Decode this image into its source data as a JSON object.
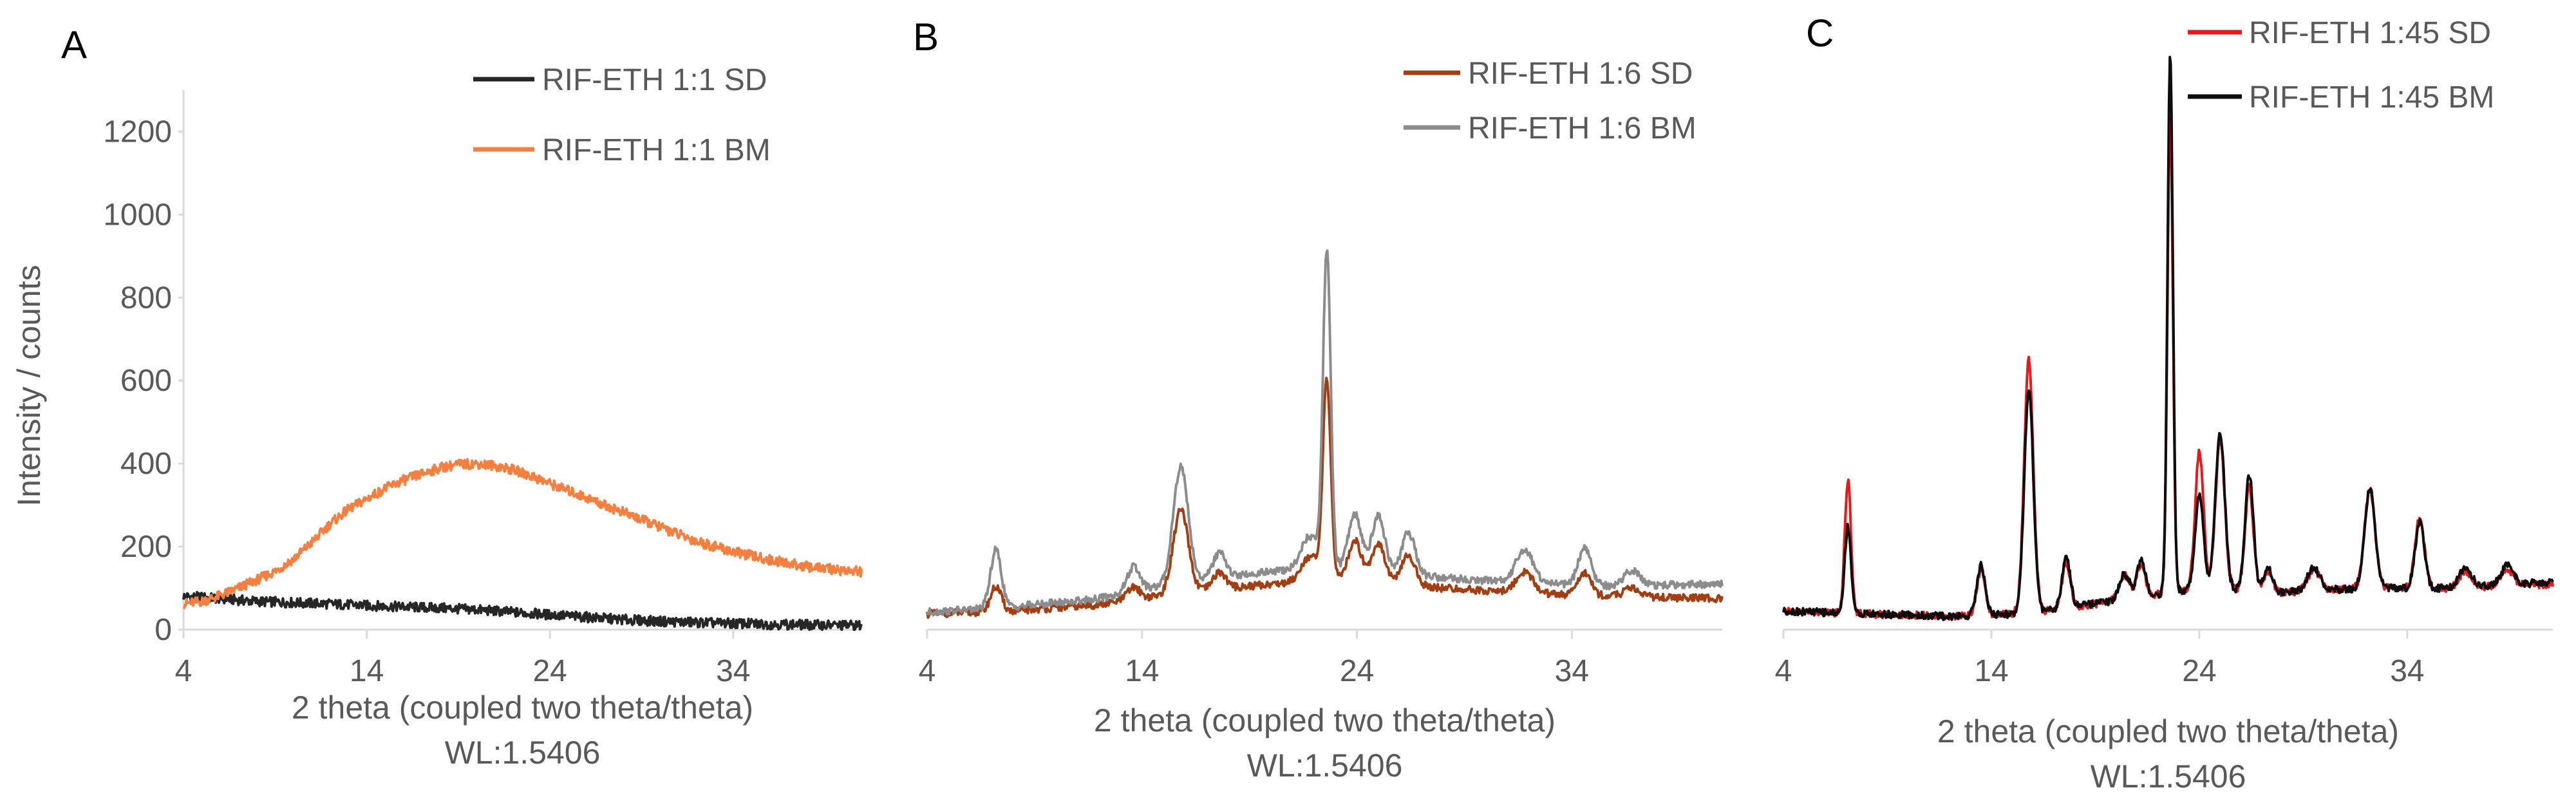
{
  "chart_data": [
    {
      "type": "line",
      "panel_label": "A",
      "xlabel": "2 theta (coupled two theta/theta)",
      "xlabel2": "WL:1.5406",
      "ylabel": "Intensity / counts",
      "xlim": [
        4,
        41
      ],
      "ylim": [
        0,
        1300
      ],
      "xticks": [
        4,
        14,
        24,
        34
      ],
      "yticks": [
        0,
        200,
        400,
        600,
        800,
        1000,
        1200
      ],
      "legend_position": "top-right",
      "grid": false,
      "series": [
        {
          "name": "RIF-ETH 1:1 SD",
          "color": "#262626",
          "points": [
            [
              4,
              80
            ],
            [
              5,
              78
            ],
            [
              8,
              68
            ],
            [
              10,
              65
            ],
            [
              12,
              62
            ],
            [
              14,
              58
            ],
            [
              16,
              55
            ],
            [
              18,
              52
            ],
            [
              20,
              48
            ],
            [
              22,
              42
            ],
            [
              24,
              36
            ],
            [
              26,
              30
            ],
            [
              28,
              24
            ],
            [
              30,
              20
            ],
            [
              33,
              16
            ],
            [
              36,
              13
            ],
            [
              39,
              11
            ],
            [
              41,
              10
            ]
          ]
        },
        {
          "name": "RIF-ETH 1:1 BM",
          "color": "#f47f3f",
          "points": [
            [
              4,
              62
            ],
            [
              5,
              68
            ],
            [
              6,
              82
            ],
            [
              7,
              100
            ],
            [
              8,
              120
            ],
            [
              9,
              140
            ],
            [
              10,
              170
            ],
            [
              11,
              210
            ],
            [
              12,
              255
            ],
            [
              13,
              290
            ],
            [
              14,
              315
            ],
            [
              15,
              340
            ],
            [
              16,
              360
            ],
            [
              17,
              375
            ],
            [
              18,
              390
            ],
            [
              19,
              398
            ],
            [
              20,
              400
            ],
            [
              21,
              395
            ],
            [
              22,
              385
            ],
            [
              23,
              370
            ],
            [
              24,
              352
            ],
            [
              25,
              335
            ],
            [
              26,
              318
            ],
            [
              27,
              300
            ],
            [
              28,
              283
            ],
            [
              29,
              265
            ],
            [
              30,
              248
            ],
            [
              31,
              230
            ],
            [
              32,
              213
            ],
            [
              33,
              200
            ],
            [
              34,
              188
            ],
            [
              35,
              178
            ],
            [
              36,
              168
            ],
            [
              37,
              160
            ],
            [
              38,
              152
            ],
            [
              39,
              147
            ],
            [
              40,
              143
            ],
            [
              41,
              140
            ]
          ]
        }
      ]
    },
    {
      "type": "line",
      "panel_label": "B",
      "xlabel": "2 theta (coupled two theta/theta)",
      "xlabel2": "WL:1.5406",
      "xlim": [
        4,
        41
      ],
      "ylim": [
        0,
        1300
      ],
      "xticks": [
        4,
        14,
        24,
        34
      ],
      "legend_position": "top-right",
      "grid": false,
      "series": [
        {
          "name": "RIF-ETH 1:6 SD",
          "color": "#a23e12",
          "baseline": [
            [
              4,
              38
            ],
            [
              8,
              45
            ],
            [
              12,
              60
            ],
            [
              16,
              90
            ],
            [
              20,
              110
            ],
            [
              24,
              125
            ],
            [
              28,
              100
            ],
            [
              32,
              88
            ],
            [
              36,
              80
            ],
            [
              41,
              75
            ]
          ],
          "peaks": [
            [
              7.2,
              60,
              0.25
            ],
            [
              13.6,
              30,
              0.3
            ],
            [
              15.8,
              200,
              0.35
            ],
            [
              17.6,
              40,
              0.3
            ],
            [
              21.8,
              60,
              0.4
            ],
            [
              22.6,
              480,
              0.18
            ],
            [
              23.9,
              90,
              0.3
            ],
            [
              25,
              90,
              0.3
            ],
            [
              26.4,
              70,
              0.3
            ],
            [
              31.8,
              50,
              0.4
            ],
            [
              34.6,
              55,
              0.3
            ],
            [
              36.8,
              20,
              0.4
            ]
          ]
        },
        {
          "name": "RIF-ETH 1:6 BM",
          "color": "#8c8c8c",
          "baseline": [
            [
              4,
              42
            ],
            [
              8,
              55
            ],
            [
              12,
              75
            ],
            [
              16,
              115
            ],
            [
              20,
              140
            ],
            [
              24,
              150
            ],
            [
              28,
              125
            ],
            [
              32,
              112
            ],
            [
              36,
              105
            ],
            [
              41,
              110
            ]
          ],
          "peaks": [
            [
              7.2,
              140,
              0.25
            ],
            [
              13.6,
              60,
              0.3
            ],
            [
              15.8,
              280,
              0.35
            ],
            [
              17.6,
              60,
              0.3
            ],
            [
              21.8,
              80,
              0.4
            ],
            [
              22.6,
              760,
              0.18
            ],
            [
              23.9,
              130,
              0.3
            ],
            [
              25,
              130,
              0.3
            ],
            [
              26.4,
              100,
              0.3
            ],
            [
              31.8,
              80,
              0.4
            ],
            [
              34.6,
              90,
              0.3
            ],
            [
              36.8,
              35,
              0.4
            ]
          ]
        }
      ]
    },
    {
      "type": "line",
      "panel_label": "C",
      "xlabel": "2 theta (coupled two theta/theta)",
      "xlabel2": "WL:1.5406",
      "xlim": [
        4,
        41
      ],
      "ylim": [
        0,
        1300
      ],
      "xticks": [
        4,
        14,
        24,
        34
      ],
      "legend_position": "top-right",
      "grid": false,
      "series": [
        {
          "name": "RIF-ETH 1:45 SD",
          "color": "#e8191c",
          "baseline": [
            [
              4,
              45
            ],
            [
              8,
              38
            ],
            [
              12,
              32
            ],
            [
              16,
              40
            ],
            [
              20,
              70
            ],
            [
              24,
              100
            ],
            [
              28,
              90
            ],
            [
              32,
              100
            ],
            [
              36,
              100
            ],
            [
              41,
              110
            ]
          ],
          "peaks": [
            [
              7.1,
              320,
              0.15
            ],
            [
              13.5,
              110,
              0.2
            ],
            [
              15.8,
              610,
              0.22
            ],
            [
              17.6,
              110,
              0.2
            ],
            [
              20.4,
              60,
              0.25
            ],
            [
              21.2,
              80,
              0.2
            ],
            [
              22.6,
              1150,
              0.13
            ],
            [
              24,
              330,
              0.2
            ],
            [
              25,
              360,
              0.22
            ],
            [
              26.4,
              250,
              0.2
            ],
            [
              27.3,
              50,
              0.2
            ],
            [
              29.5,
              50,
              0.3
            ],
            [
              32.2,
              240,
              0.25
            ],
            [
              34.6,
              170,
              0.22
            ],
            [
              36.8,
              40,
              0.3
            ],
            [
              38.8,
              40,
              0.3
            ]
          ]
        },
        {
          "name": "RIF-ETH 1:45 BM",
          "color": "#0d0d0d",
          "baseline": [
            [
              4,
              45
            ],
            [
              8,
              38
            ],
            [
              12,
              32
            ],
            [
              16,
              40
            ],
            [
              20,
              70
            ],
            [
              24,
              100
            ],
            [
              28,
              90
            ],
            [
              32,
              100
            ],
            [
              36,
              100
            ],
            [
              41,
              115
            ]
          ],
          "peaks": [
            [
              7.1,
              210,
              0.15
            ],
            [
              13.5,
              120,
              0.2
            ],
            [
              15.8,
              540,
              0.22
            ],
            [
              17.6,
              120,
              0.2
            ],
            [
              20.4,
              60,
              0.25
            ],
            [
              21.2,
              90,
              0.2
            ],
            [
              22.6,
              1300,
              0.13
            ],
            [
              24,
              230,
              0.2
            ],
            [
              25,
              380,
              0.22
            ],
            [
              26.4,
              280,
              0.2
            ],
            [
              27.3,
              60,
              0.2
            ],
            [
              29.5,
              55,
              0.3
            ],
            [
              32.2,
              240,
              0.25
            ],
            [
              34.6,
              160,
              0.22
            ],
            [
              36.8,
              45,
              0.3
            ],
            [
              38.8,
              45,
              0.3
            ]
          ]
        }
      ]
    }
  ]
}
